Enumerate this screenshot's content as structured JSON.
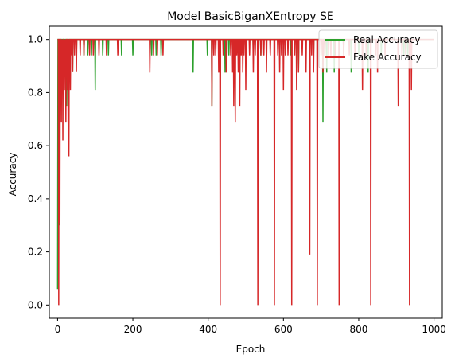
{
  "chart_data": {
    "type": "line",
    "title": "Model BasicBiganXEntropy SE",
    "xlabel": "Epoch",
    "ylabel": "Accuracy",
    "xlim": [
      -22,
      1022
    ],
    "ylim": [
      -0.05,
      1.05
    ],
    "xticks": [
      0,
      200,
      400,
      600,
      800,
      1000
    ],
    "xtick_labels": [
      "0",
      "200",
      "400",
      "600",
      "800",
      "1000"
    ],
    "yticks": [
      0.0,
      0.2,
      0.4,
      0.6,
      0.8,
      1.0
    ],
    "ytick_labels": [
      "0.0",
      "0.2",
      "0.4",
      "0.6",
      "0.8",
      "1.0"
    ],
    "grid": false,
    "legend_position": "top-right",
    "series": [
      {
        "name": "Real Accuracy",
        "color": "#2ca02c",
        "baseline": 1.0,
        "dips": [
          [
            0,
            0.06
          ],
          [
            2,
            1.0
          ],
          [
            3,
            0.5
          ],
          [
            4,
            0.3
          ],
          [
            6,
            1.0
          ],
          [
            8,
            0.8
          ],
          [
            10,
            1.0
          ],
          [
            12,
            0.88
          ],
          [
            14,
            1.0
          ],
          [
            16,
            0.81
          ],
          [
            18,
            1.0
          ],
          [
            20,
            0.94
          ],
          [
            24,
            0.75
          ],
          [
            28,
            1.0
          ],
          [
            32,
            0.94
          ],
          [
            35,
            1.0
          ],
          [
            40,
            0.88
          ],
          [
            45,
            1.0
          ],
          [
            50,
            0.94
          ],
          [
            60,
            1.0
          ],
          [
            70,
            0.94
          ],
          [
            75,
            1.0
          ],
          [
            80,
            0.94
          ],
          [
            90,
            0.94
          ],
          [
            100,
            0.81
          ],
          [
            105,
            1.0
          ],
          [
            120,
            0.94
          ],
          [
            135,
            0.94
          ],
          [
            170,
            0.94
          ],
          [
            200,
            0.94
          ],
          [
            250,
            0.94
          ],
          [
            262,
            0.94
          ],
          [
            275,
            0.94
          ],
          [
            360,
            0.875
          ],
          [
            398,
            0.94
          ],
          [
            410,
            0.75
          ],
          [
            430,
            0.94
          ],
          [
            445,
            0.875
          ],
          [
            455,
            0.94
          ],
          [
            500,
            0.94
          ],
          [
            520,
            0.94
          ],
          [
            540,
            0.94
          ],
          [
            620,
            0.94
          ],
          [
            640,
            0.875
          ],
          [
            680,
            0.94
          ],
          [
            705,
            0.69
          ],
          [
            715,
            0.875
          ],
          [
            735,
            0.875
          ],
          [
            760,
            0.94
          ],
          [
            780,
            0.875
          ],
          [
            800,
            0.94
          ],
          [
            825,
            0.875
          ],
          [
            860,
            0.94
          ],
          [
            905,
            0.94
          ],
          [
            920,
            0.94
          ],
          [
            930,
            0.94
          ]
        ]
      },
      {
        "name": "Fake Accuracy",
        "color": "#d62728",
        "baseline": 1.0,
        "dips": [
          [
            3,
            0.0
          ],
          [
            4,
            0.5
          ],
          [
            5,
            0.75
          ],
          [
            6,
            0.31
          ],
          [
            7,
            1.0
          ],
          [
            8,
            0.81
          ],
          [
            9,
            1.0
          ],
          [
            10,
            0.69
          ],
          [
            12,
            0.81
          ],
          [
            14,
            0.62
          ],
          [
            16,
            1.0
          ],
          [
            18,
            0.81
          ],
          [
            20,
            0.94
          ],
          [
            22,
            0.69
          ],
          [
            24,
            1.0
          ],
          [
            26,
            0.81
          ],
          [
            28,
            0.69
          ],
          [
            30,
            0.56
          ],
          [
            32,
            1.0
          ],
          [
            34,
            0.81
          ],
          [
            36,
            1.0
          ],
          [
            38,
            0.94
          ],
          [
            40,
            0.88
          ],
          [
            42,
            1.0
          ],
          [
            45,
            0.94
          ],
          [
            50,
            0.88
          ],
          [
            55,
            1.0
          ],
          [
            60,
            0.94
          ],
          [
            70,
            0.94
          ],
          [
            85,
            0.94
          ],
          [
            95,
            0.94
          ],
          [
            110,
            0.94
          ],
          [
            130,
            0.94
          ],
          [
            160,
            0.94
          ],
          [
            245,
            0.875
          ],
          [
            255,
            0.94
          ],
          [
            265,
            0.94
          ],
          [
            280,
            0.94
          ],
          [
            410,
            0.75
          ],
          [
            415,
            0.94
          ],
          [
            420,
            0.94
          ],
          [
            428,
            0.875
          ],
          [
            432,
            0.0
          ],
          [
            440,
            0.94
          ],
          [
            448,
            0.875
          ],
          [
            460,
            0.94
          ],
          [
            465,
            0.875
          ],
          [
            468,
            0.75
          ],
          [
            472,
            0.69
          ],
          [
            476,
            0.94
          ],
          [
            480,
            0.875
          ],
          [
            484,
            0.75
          ],
          [
            488,
            0.94
          ],
          [
            492,
            0.875
          ],
          [
            495,
            0.94
          ],
          [
            500,
            0.81
          ],
          [
            510,
            0.94
          ],
          [
            520,
            0.875
          ],
          [
            525,
            0.94
          ],
          [
            532,
            0.0
          ],
          [
            540,
            0.94
          ],
          [
            548,
            0.94
          ],
          [
            555,
            0.875
          ],
          [
            565,
            0.94
          ],
          [
            576,
            0.0
          ],
          [
            585,
            0.94
          ],
          [
            590,
            0.875
          ],
          [
            595,
            0.94
          ],
          [
            600,
            0.81
          ],
          [
            605,
            0.94
          ],
          [
            612,
            0.94
          ],
          [
            622,
            0.0
          ],
          [
            630,
            0.94
          ],
          [
            635,
            0.81
          ],
          [
            640,
            0.875
          ],
          [
            650,
            0.94
          ],
          [
            660,
            0.875
          ],
          [
            670,
            0.19
          ],
          [
            675,
            0.94
          ],
          [
            680,
            0.875
          ],
          [
            690,
            0.0
          ],
          [
            700,
            0.94
          ],
          [
            705,
            0.875
          ],
          [
            710,
            0.94
          ],
          [
            720,
            0.94
          ],
          [
            726,
            0.94
          ],
          [
            738,
            0.94
          ],
          [
            748,
            0.0
          ],
          [
            760,
            0.94
          ],
          [
            775,
            0.94
          ],
          [
            790,
            0.94
          ],
          [
            810,
            0.81
          ],
          [
            820,
            0.94
          ],
          [
            832,
            0.0
          ],
          [
            845,
            0.94
          ],
          [
            850,
            0.875
          ],
          [
            870,
            0.94
          ],
          [
            905,
            0.75
          ],
          [
            915,
            0.94
          ],
          [
            925,
            0.94
          ],
          [
            935,
            0.0
          ],
          [
            940,
            0.81
          ]
        ]
      }
    ]
  }
}
